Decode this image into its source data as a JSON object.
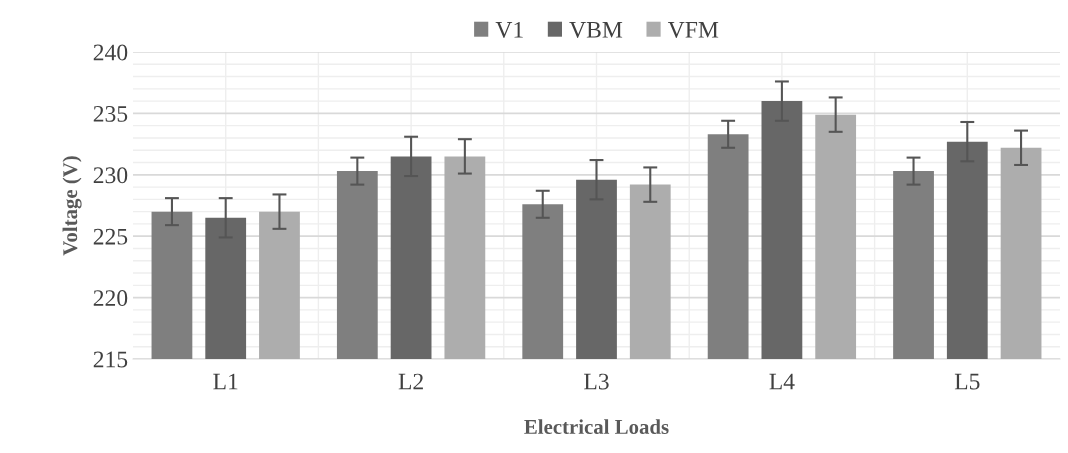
{
  "chart_data": {
    "type": "bar",
    "xlabel": "Electrical Loads",
    "ylabel": "Voltage (V)",
    "categories": [
      "L1",
      "L2",
      "L3",
      "L4",
      "L5"
    ],
    "series": [
      {
        "name": "V1",
        "color": "#7f7f7f",
        "values": [
          227.0,
          230.3,
          227.6,
          233.3,
          230.3
        ],
        "errors": [
          1.1,
          1.1,
          1.1,
          1.1,
          1.1
        ]
      },
      {
        "name": "VBM",
        "color": "#676767",
        "values": [
          226.5,
          231.5,
          229.6,
          236.0,
          232.7
        ],
        "errors": [
          1.6,
          1.6,
          1.6,
          1.6,
          1.6
        ]
      },
      {
        "name": "VFM",
        "color": "#adadad",
        "values": [
          227.0,
          231.5,
          229.2,
          234.9,
          232.2
        ],
        "errors": [
          1.4,
          1.4,
          1.4,
          1.4,
          1.4
        ]
      }
    ],
    "ylim": [
      215,
      240
    ],
    "yticks": [
      215,
      220,
      225,
      230,
      235,
      240
    ],
    "grid": true,
    "legend": "top"
  }
}
